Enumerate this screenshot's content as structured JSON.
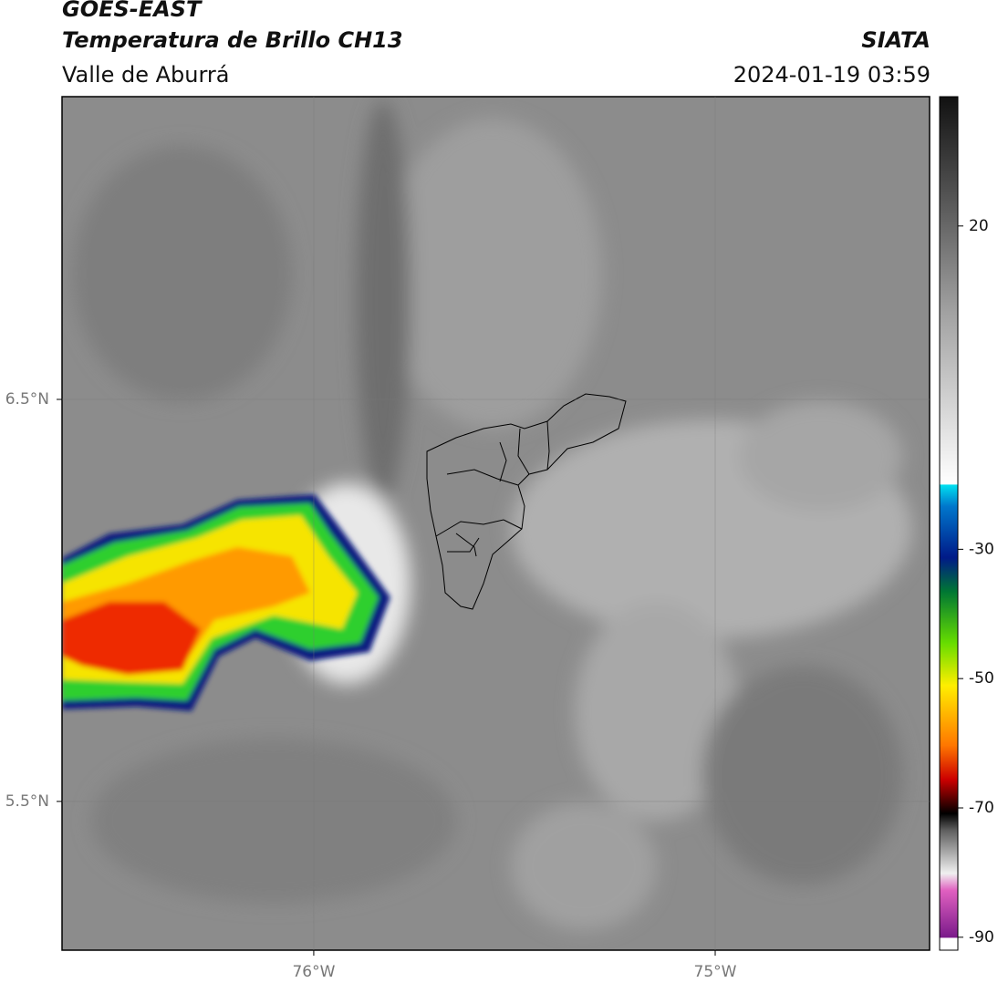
{
  "header": {
    "source": "GOES-EAST",
    "product": "Temperatura de Brillo CH13",
    "region": "Valle de Aburrá",
    "agency": "SIATA",
    "datetime": "2024-01-19 03:59"
  },
  "map": {
    "lon_range": [
      -76.627,
      -74.466
    ],
    "lat_range": [
      5.13,
      7.253
    ],
    "lon_ticks": [
      {
        "value": -76,
        "label": "76°W"
      },
      {
        "value": -75,
        "label": "75°W"
      }
    ],
    "lat_ticks": [
      {
        "value": 6.5,
        "label": "6.5°N"
      },
      {
        "value": 5.5,
        "label": "5.5°N"
      }
    ]
  },
  "colorbar": {
    "range": [
      -92,
      40
    ],
    "ticks": [
      20,
      -30,
      -50,
      -70,
      -90
    ]
  }
}
